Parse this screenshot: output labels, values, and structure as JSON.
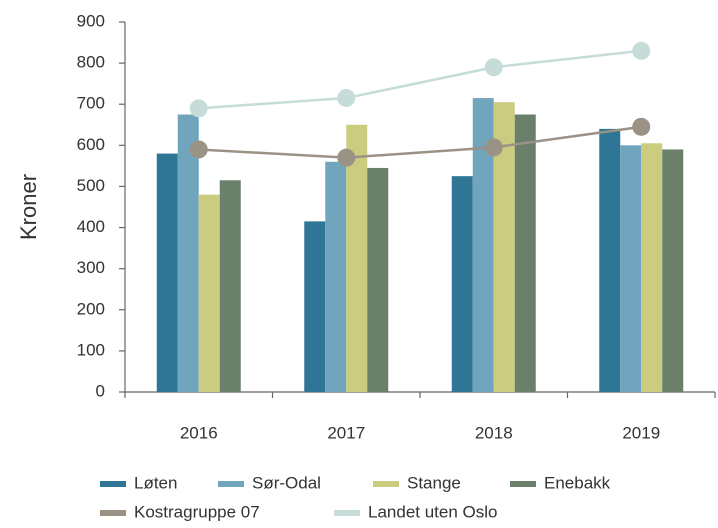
{
  "chart_data": {
    "type": "bar",
    "y_label": "Kroner",
    "categories": [
      "2016",
      "2017",
      "2018",
      "2019"
    ],
    "series": [
      {
        "name": "Løten",
        "color": "#2e7596",
        "values": [
          580,
          415,
          525,
          640
        ]
      },
      {
        "name": "Sør-Odal",
        "color": "#70a5bd",
        "values": [
          675,
          560,
          715,
          600
        ]
      },
      {
        "name": "Stange",
        "color": "#cccc80",
        "values": [
          480,
          650,
          705,
          605
        ]
      },
      {
        "name": "Enebakk",
        "color": "#6a806a",
        "values": [
          515,
          545,
          675,
          590
        ]
      },
      {
        "name": "Kostragruppe 07",
        "color": "#9a9285",
        "type": "line",
        "values": [
          590,
          570,
          595,
          645
        ]
      },
      {
        "name": "Landet uten Oslo",
        "color": "#c5dcd9",
        "type": "line",
        "values": [
          690,
          715,
          790,
          830
        ]
      }
    ],
    "ylim": [
      0,
      900
    ],
    "yticks": [
      0,
      100,
      200,
      300,
      400,
      500,
      600,
      700,
      800,
      900
    ],
    "grid": false,
    "legend": "bottom"
  }
}
